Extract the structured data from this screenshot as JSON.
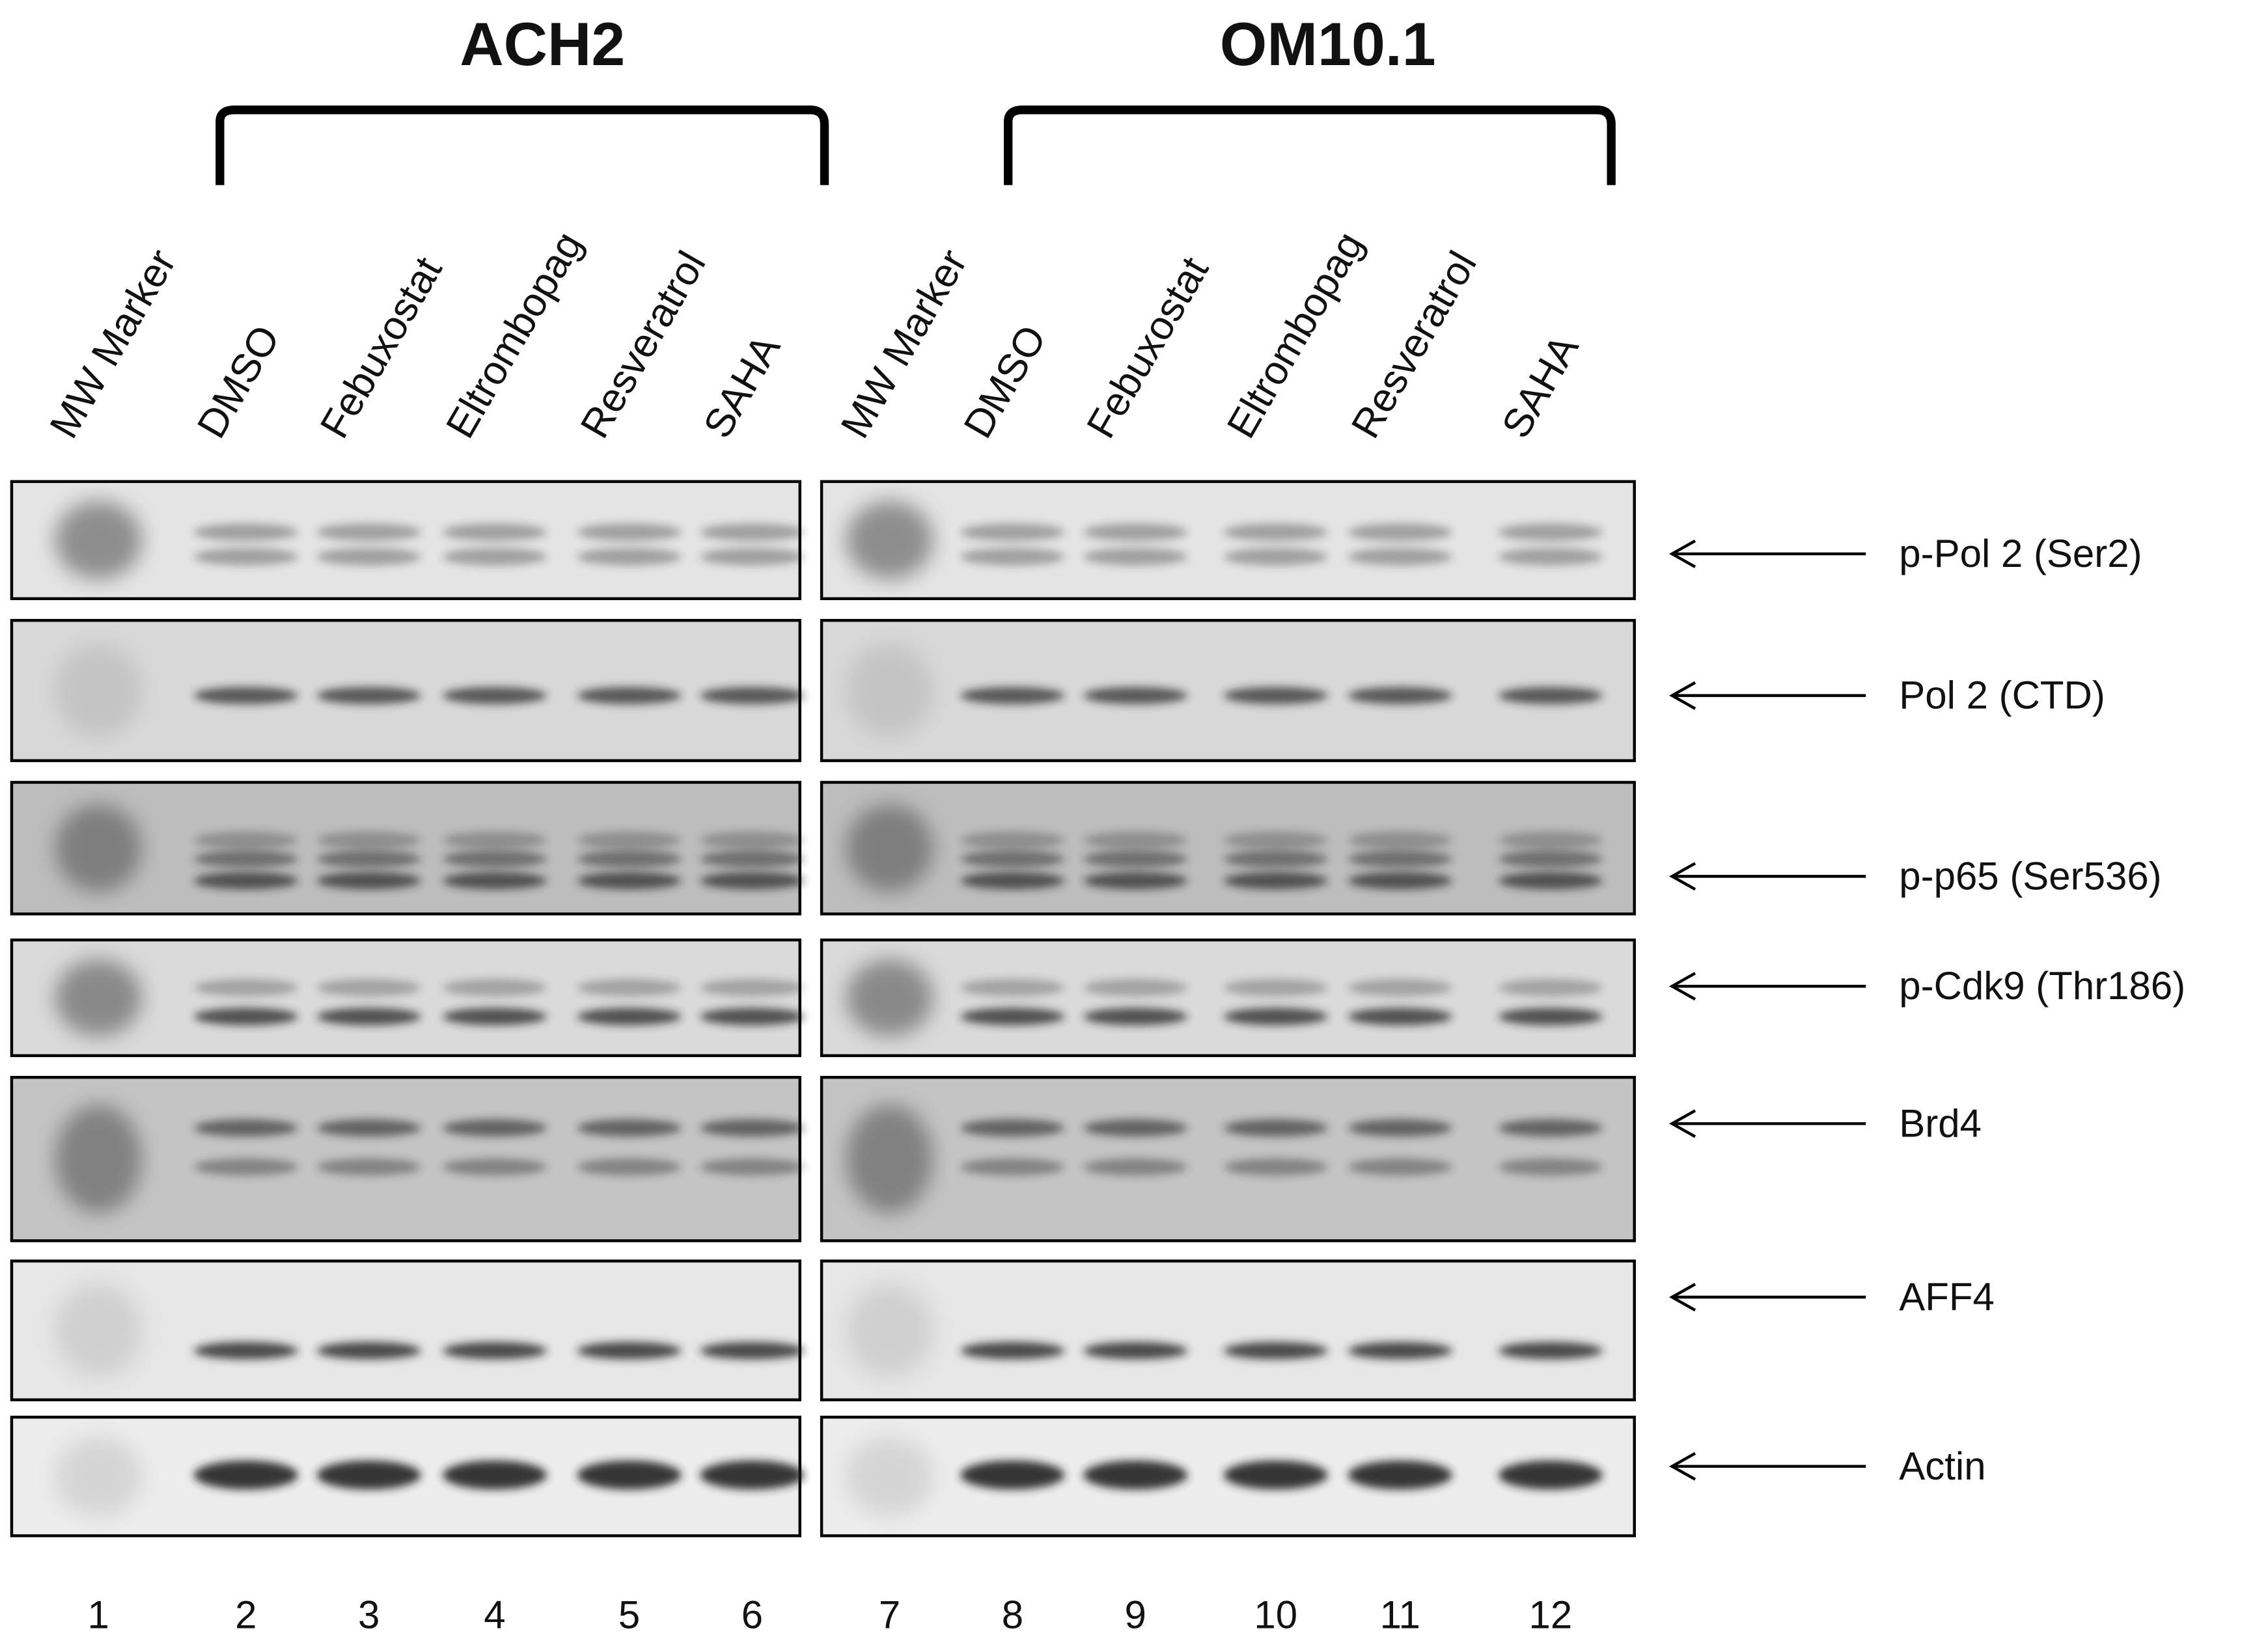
{
  "groups": [
    {
      "title": "ACH2",
      "lanes": [
        "MW Marker",
        "DMSO",
        "Febuxostat",
        "Eltrombopag",
        "Resveratrol",
        "SAHA"
      ]
    },
    {
      "title": "OM10.1",
      "lanes": [
        "MW Marker",
        "DMSO",
        "Febuxostat",
        "Eltrombopag",
        "Resveratrol",
        "SAHA"
      ]
    }
  ],
  "blots": [
    "p-Pol 2 (Ser2)",
    "Pol 2 (CTD)",
    "p-p65 (Ser536)",
    "p-Cdk9 (Thr186)",
    "Brd4",
    "AFF4",
    "Actin"
  ],
  "lane_numbers": [
    1,
    2,
    3,
    4,
    5,
    6,
    7,
    8,
    9,
    10,
    11,
    12
  ]
}
